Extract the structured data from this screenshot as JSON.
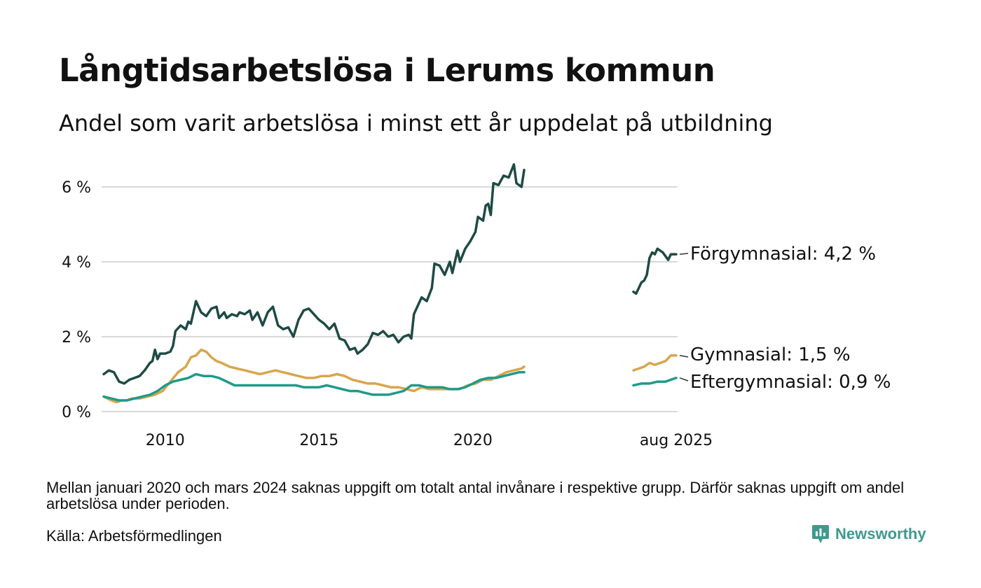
{
  "header": {
    "title": "Långtidsarbetslösa i Lerums kommun",
    "subtitle": "Andel som varit arbetslösa i minst ett år uppdelat på utbildning"
  },
  "footer": {
    "note": "Mellan januari 2020 och mars 2024 saknas uppgift om totalt antal invånare i respektive grupp. Därför saknas uppgift om andel arbetslösa under perioden.",
    "source": "Källa: Arbetsförmedlingen",
    "brand": "Newsworthy",
    "brand_icon": "newsworthy-chart-icon",
    "brand_color": "#3f9a8d"
  },
  "chart_data": {
    "type": "line",
    "title": "Långtidsarbetslösa i Lerums kommun",
    "subtitle": "Andel som varit arbetslösa i minst ett år uppdelat på utbildning",
    "xlabel": "",
    "ylabel": "",
    "x_ticks": [
      {
        "label": "2010",
        "x": "2010-01"
      },
      {
        "label": "2015",
        "x": "2015-01"
      },
      {
        "label": "2020",
        "x": "2020-01"
      },
      {
        "label": "aug 2025",
        "x": "2025-08"
      }
    ],
    "y_ticks": [
      {
        "label": "0 %",
        "value": 0
      },
      {
        "label": "2 %",
        "value": 2
      },
      {
        "label": "4 %",
        "value": 4
      },
      {
        "label": "6 %",
        "value": 6
      }
    ],
    "ylim": [
      0,
      6.6
    ],
    "grid": "horizontal",
    "axis_break": "x-axis is compressed between 2021 and 2024 (missing period)",
    "series": [
      {
        "name": "Förgymnasial",
        "label": "Förgymnasial: 4,2 %",
        "color": "#1f4a45",
        "segments": [
          [
            [
              "2008-01",
              1.0
            ],
            [
              "2008-03",
              1.1
            ],
            [
              "2008-05",
              1.05
            ],
            [
              "2008-07",
              0.8
            ],
            [
              "2008-09",
              0.75
            ],
            [
              "2008-11",
              0.85
            ],
            [
              "2009-01",
              0.9
            ],
            [
              "2009-03",
              0.95
            ],
            [
              "2009-05",
              1.1
            ],
            [
              "2009-07",
              1.3
            ],
            [
              "2009-08",
              1.35
            ],
            [
              "2009-09",
              1.65
            ],
            [
              "2009-10",
              1.4
            ],
            [
              "2009-11",
              1.55
            ],
            [
              "2010-01",
              1.55
            ],
            [
              "2010-03",
              1.6
            ],
            [
              "2010-04",
              1.75
            ],
            [
              "2010-05",
              2.15
            ],
            [
              "2010-07",
              2.3
            ],
            [
              "2010-09",
              2.2
            ],
            [
              "2010-10",
              2.4
            ],
            [
              "2010-11",
              2.35
            ],
            [
              "2011-01",
              2.95
            ],
            [
              "2011-03",
              2.65
            ],
            [
              "2011-05",
              2.55
            ],
            [
              "2011-07",
              2.75
            ],
            [
              "2011-09",
              2.8
            ],
            [
              "2011-10",
              2.5
            ],
            [
              "2011-12",
              2.65
            ],
            [
              "2012-01",
              2.5
            ],
            [
              "2012-03",
              2.6
            ],
            [
              "2012-05",
              2.55
            ],
            [
              "2012-06",
              2.65
            ],
            [
              "2012-08",
              2.6
            ],
            [
              "2012-10",
              2.7
            ],
            [
              "2012-11",
              2.45
            ],
            [
              "2013-01",
              2.65
            ],
            [
              "2013-03",
              2.3
            ],
            [
              "2013-05",
              2.65
            ],
            [
              "2013-07",
              2.8
            ],
            [
              "2013-09",
              2.3
            ],
            [
              "2013-11",
              2.2
            ],
            [
              "2014-01",
              2.25
            ],
            [
              "2014-03",
              2.0
            ],
            [
              "2014-05",
              2.45
            ],
            [
              "2014-07",
              2.7
            ],
            [
              "2014-09",
              2.75
            ],
            [
              "2014-11",
              2.6
            ],
            [
              "2015-01",
              2.45
            ],
            [
              "2015-03",
              2.35
            ],
            [
              "2015-05",
              2.2
            ],
            [
              "2015-07",
              2.35
            ],
            [
              "2015-09",
              1.95
            ],
            [
              "2015-11",
              1.9
            ],
            [
              "2016-01",
              1.65
            ],
            [
              "2016-03",
              1.7
            ],
            [
              "2016-04",
              1.55
            ],
            [
              "2016-06",
              1.65
            ],
            [
              "2016-08",
              1.8
            ],
            [
              "2016-10",
              2.1
            ],
            [
              "2016-12",
              2.05
            ],
            [
              "2017-02",
              2.15
            ],
            [
              "2017-04",
              2.0
            ],
            [
              "2017-06",
              2.05
            ],
            [
              "2017-08",
              1.85
            ],
            [
              "2017-10",
              2.0
            ],
            [
              "2017-12",
              2.05
            ],
            [
              "2018-01",
              1.95
            ],
            [
              "2018-02",
              2.6
            ],
            [
              "2018-04",
              2.9
            ],
            [
              "2018-05",
              3.05
            ],
            [
              "2018-07",
              2.95
            ],
            [
              "2018-09",
              3.3
            ],
            [
              "2018-10",
              3.95
            ],
            [
              "2018-12",
              3.9
            ],
            [
              "2019-02",
              3.65
            ],
            [
              "2019-04",
              4.0
            ],
            [
              "2019-05",
              3.7
            ],
            [
              "2019-07",
              4.3
            ],
            [
              "2019-08",
              4.0
            ],
            [
              "2019-10",
              4.35
            ],
            [
              "2019-12",
              4.55
            ],
            [
              "2020-02",
              4.8
            ],
            [
              "2020-03",
              5.2
            ],
            [
              "2020-05",
              5.1
            ],
            [
              "2020-06",
              5.5
            ],
            [
              "2020-07",
              5.55
            ],
            [
              "2020-08",
              5.25
            ],
            [
              "2020-09",
              6.1
            ],
            [
              "2020-11",
              6.05
            ],
            [
              "2021-01",
              6.3
            ],
            [
              "2021-03",
              6.25
            ],
            [
              "2021-05",
              6.6
            ],
            [
              "2021-06",
              6.1
            ],
            [
              "2021-08",
              6.0
            ],
            [
              "2021-09",
              6.45
            ]
          ],
          [
            [
              "2024-04",
              3.2
            ],
            [
              "2024-05",
              3.15
            ],
            [
              "2024-06",
              3.3
            ],
            [
              "2024-07",
              3.45
            ],
            [
              "2024-08",
              3.5
            ],
            [
              "2024-09",
              3.65
            ],
            [
              "2024-10",
              4.1
            ],
            [
              "2024-11",
              4.25
            ],
            [
              "2024-12",
              4.2
            ],
            [
              "2025-01",
              4.35
            ],
            [
              "2025-02",
              4.3
            ],
            [
              "2025-03",
              4.25
            ],
            [
              "2025-04",
              4.15
            ],
            [
              "2025-05",
              4.05
            ],
            [
              "2025-06",
              4.2
            ],
            [
              "2025-08",
              4.2
            ]
          ]
        ]
      },
      {
        "name": "Gymnasial",
        "label": "Gymnasial: 1,5 %",
        "color": "#d9a54b",
        "segments": [
          [
            [
              "2008-01",
              0.4
            ],
            [
              "2008-04",
              0.3
            ],
            [
              "2008-06",
              0.25
            ],
            [
              "2008-08",
              0.3
            ],
            [
              "2008-10",
              0.3
            ],
            [
              "2008-12",
              0.35
            ],
            [
              "2009-03",
              0.35
            ],
            [
              "2009-06",
              0.4
            ],
            [
              "2009-09",
              0.45
            ],
            [
              "2009-12",
              0.55
            ],
            [
              "2010-03",
              0.8
            ],
            [
              "2010-06",
              1.05
            ],
            [
              "2010-09",
              1.2
            ],
            [
              "2010-11",
              1.45
            ],
            [
              "2011-01",
              1.5
            ],
            [
              "2011-03",
              1.65
            ],
            [
              "2011-05",
              1.6
            ],
            [
              "2011-07",
              1.45
            ],
            [
              "2011-09",
              1.35
            ],
            [
              "2011-11",
              1.3
            ],
            [
              "2012-02",
              1.2
            ],
            [
              "2012-05",
              1.15
            ],
            [
              "2012-08",
              1.1
            ],
            [
              "2012-11",
              1.05
            ],
            [
              "2013-02",
              1.0
            ],
            [
              "2013-05",
              1.05
            ],
            [
              "2013-08",
              1.1
            ],
            [
              "2013-11",
              1.05
            ],
            [
              "2014-02",
              1.0
            ],
            [
              "2014-05",
              0.95
            ],
            [
              "2014-08",
              0.9
            ],
            [
              "2014-11",
              0.9
            ],
            [
              "2015-02",
              0.95
            ],
            [
              "2015-05",
              0.95
            ],
            [
              "2015-08",
              1.0
            ],
            [
              "2015-11",
              0.95
            ],
            [
              "2016-02",
              0.85
            ],
            [
              "2016-05",
              0.8
            ],
            [
              "2016-08",
              0.75
            ],
            [
              "2016-11",
              0.75
            ],
            [
              "2017-02",
              0.7
            ],
            [
              "2017-05",
              0.65
            ],
            [
              "2017-08",
              0.65
            ],
            [
              "2017-11",
              0.6
            ],
            [
              "2018-02",
              0.55
            ],
            [
              "2018-05",
              0.65
            ],
            [
              "2018-08",
              0.6
            ],
            [
              "2018-11",
              0.6
            ],
            [
              "2019-02",
              0.6
            ],
            [
              "2019-05",
              0.6
            ],
            [
              "2019-08",
              0.6
            ],
            [
              "2019-11",
              0.7
            ],
            [
              "2020-02",
              0.75
            ],
            [
              "2020-05",
              0.85
            ],
            [
              "2020-08",
              0.85
            ],
            [
              "2020-11",
              0.95
            ],
            [
              "2021-02",
              1.05
            ],
            [
              "2021-05",
              1.1
            ],
            [
              "2021-08",
              1.15
            ],
            [
              "2021-09",
              1.2
            ]
          ],
          [
            [
              "2024-04",
              1.1
            ],
            [
              "2024-06",
              1.15
            ],
            [
              "2024-08",
              1.2
            ],
            [
              "2024-10",
              1.3
            ],
            [
              "2024-12",
              1.25
            ],
            [
              "2025-02",
              1.3
            ],
            [
              "2025-04",
              1.35
            ],
            [
              "2025-06",
              1.5
            ],
            [
              "2025-08",
              1.5
            ]
          ]
        ]
      },
      {
        "name": "Eftergymnasial",
        "label": "Eftergymnasial: 0,9 %",
        "color": "#1f9a8a",
        "segments": [
          [
            [
              "2008-01",
              0.4
            ],
            [
              "2008-04",
              0.35
            ],
            [
              "2008-07",
              0.3
            ],
            [
              "2008-10",
              0.3
            ],
            [
              "2009-01",
              0.35
            ],
            [
              "2009-04",
              0.4
            ],
            [
              "2009-07",
              0.45
            ],
            [
              "2009-10",
              0.55
            ],
            [
              "2010-01",
              0.7
            ],
            [
              "2010-04",
              0.8
            ],
            [
              "2010-07",
              0.85
            ],
            [
              "2010-10",
              0.9
            ],
            [
              "2011-01",
              1.0
            ],
            [
              "2011-04",
              0.95
            ],
            [
              "2011-07",
              0.95
            ],
            [
              "2011-10",
              0.9
            ],
            [
              "2012-01",
              0.8
            ],
            [
              "2012-04",
              0.7
            ],
            [
              "2012-07",
              0.7
            ],
            [
              "2012-10",
              0.7
            ],
            [
              "2013-01",
              0.7
            ],
            [
              "2013-04",
              0.7
            ],
            [
              "2013-07",
              0.7
            ],
            [
              "2013-10",
              0.7
            ],
            [
              "2014-01",
              0.7
            ],
            [
              "2014-04",
              0.7
            ],
            [
              "2014-07",
              0.65
            ],
            [
              "2014-10",
              0.65
            ],
            [
              "2015-01",
              0.65
            ],
            [
              "2015-04",
              0.7
            ],
            [
              "2015-07",
              0.65
            ],
            [
              "2015-10",
              0.6
            ],
            [
              "2016-01",
              0.55
            ],
            [
              "2016-04",
              0.55
            ],
            [
              "2016-07",
              0.5
            ],
            [
              "2016-10",
              0.45
            ],
            [
              "2017-01",
              0.45
            ],
            [
              "2017-04",
              0.45
            ],
            [
              "2017-07",
              0.5
            ],
            [
              "2017-10",
              0.55
            ],
            [
              "2018-01",
              0.7
            ],
            [
              "2018-04",
              0.7
            ],
            [
              "2018-07",
              0.65
            ],
            [
              "2018-10",
              0.65
            ],
            [
              "2019-01",
              0.65
            ],
            [
              "2019-04",
              0.6
            ],
            [
              "2019-07",
              0.6
            ],
            [
              "2019-10",
              0.65
            ],
            [
              "2020-01",
              0.75
            ],
            [
              "2020-04",
              0.85
            ],
            [
              "2020-07",
              0.9
            ],
            [
              "2020-10",
              0.9
            ],
            [
              "2021-01",
              0.95
            ],
            [
              "2021-04",
              1.0
            ],
            [
              "2021-07",
              1.05
            ],
            [
              "2021-09",
              1.05
            ]
          ],
          [
            [
              "2024-04",
              0.7
            ],
            [
              "2024-07",
              0.75
            ],
            [
              "2024-10",
              0.75
            ],
            [
              "2025-01",
              0.8
            ],
            [
              "2025-04",
              0.8
            ],
            [
              "2025-06",
              0.85
            ],
            [
              "2025-08",
              0.9
            ]
          ]
        ]
      }
    ]
  }
}
